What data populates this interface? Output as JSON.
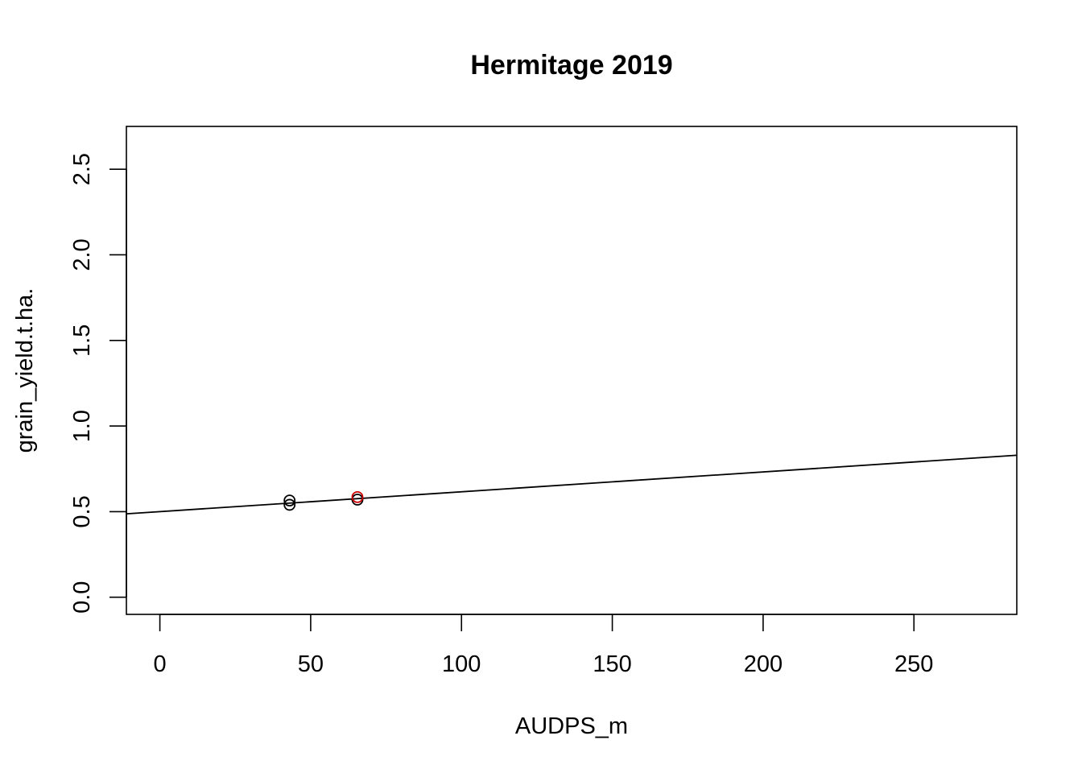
{
  "chart_data": {
    "type": "scatter",
    "title": "Hermitage 2019",
    "xlabel": "AUDPS_m",
    "ylabel": "grain_yield.t.ha.",
    "xlim": [
      -11.1,
      284.1
    ],
    "ylim": [
      -0.1,
      2.75
    ],
    "xticks": [
      0,
      50,
      100,
      150,
      200,
      250
    ],
    "yticks": [
      0.0,
      0.5,
      1.0,
      1.5,
      2.0,
      2.5
    ],
    "xtick_labels": [
      "0",
      "50",
      "100",
      "150",
      "200",
      "250"
    ],
    "ytick_labels": [
      "0.0",
      "0.5",
      "1.0",
      "1.5",
      "2.0",
      "2.5"
    ],
    "grid": false,
    "series": [
      {
        "color": "#000000",
        "marker": "open-circle",
        "points": [
          {
            "x": 43,
            "y": 0.54
          },
          {
            "x": 43,
            "y": 0.565
          },
          {
            "x": 65.5,
            "y": 0.57
          }
        ]
      },
      {
        "color": "#cc0000",
        "marker": "open-circle",
        "points": [
          {
            "x": 65.5,
            "y": 0.585
          }
        ]
      }
    ],
    "fit_line": {
      "color": "#000000",
      "intercept": 0.5,
      "slope": 0.00116
    }
  }
}
